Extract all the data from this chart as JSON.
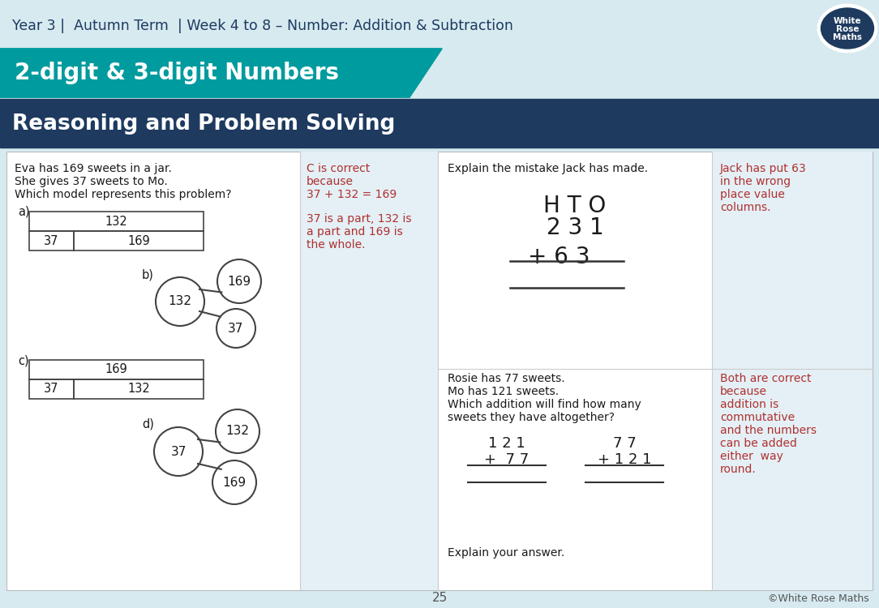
{
  "bg_light": "#d6eaf0",
  "bg_white": "#ffffff",
  "teal_color": "#009b9e",
  "navy_color": "#1e3a5f",
  "red_color": "#b03030",
  "light_blue_answer": "#e4f0f5",
  "header_text": "Year 3 |  Autumn Term  | Week 4 to 8 – Number: Addition & Subtraction",
  "title_text": "2-digit & 3-digit Numbers",
  "subtitle_text": "Reasoning and Problem Solving",
  "page_number": "25",
  "footer_text": "©White Rose Maths"
}
